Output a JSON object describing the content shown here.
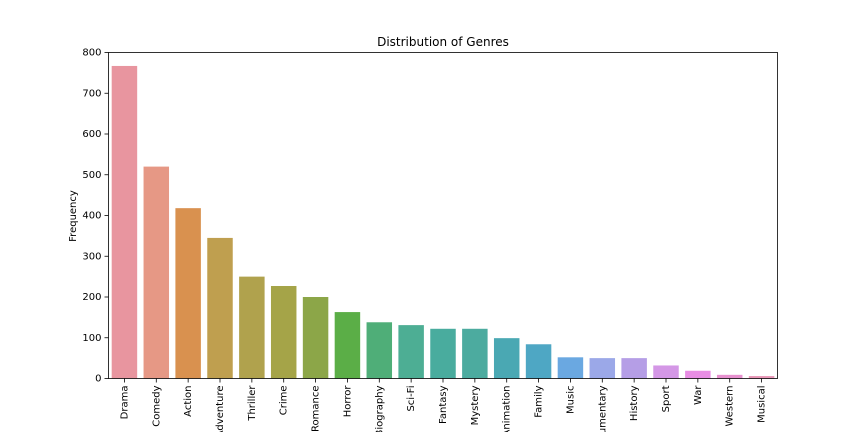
{
  "chart_data": {
    "type": "bar",
    "title": "Distribution of Genres",
    "xlabel": "",
    "ylabel": "Frequency",
    "ylim": [
      0,
      800
    ],
    "yticks": [
      0,
      100,
      200,
      300,
      400,
      500,
      600,
      700,
      800
    ],
    "grid": false,
    "legend": "none",
    "categories": [
      "Drama",
      "Comedy",
      "Action",
      "Adventure",
      "Thriller",
      "Crime",
      "Romance",
      "Horror",
      "Biography",
      "Sci-Fi",
      "Fantasy",
      "Mystery",
      "Animation",
      "Family",
      "Music",
      "Documentary",
      "History",
      "Sport",
      "War",
      "Western",
      "Musical"
    ],
    "values": [
      767,
      520,
      418,
      345,
      250,
      227,
      200,
      163,
      138,
      131,
      122,
      122,
      99,
      84,
      52,
      50,
      50,
      32,
      19,
      9,
      6
    ],
    "colors": [
      "#e8959f",
      "#e69885",
      "#d9914f",
      "#bf9f4f",
      "#b0a24d",
      "#a5a448",
      "#8ca648",
      "#5bae47",
      "#4fae78",
      "#4dae94",
      "#49ac9e",
      "#4cab9f",
      "#4aa8b3",
      "#4ea7c4",
      "#6aa8e1",
      "#9ba8e8",
      "#b59ee6",
      "#d497e6",
      "#e88de4",
      "#e791cf",
      "#e897b7"
    ]
  }
}
